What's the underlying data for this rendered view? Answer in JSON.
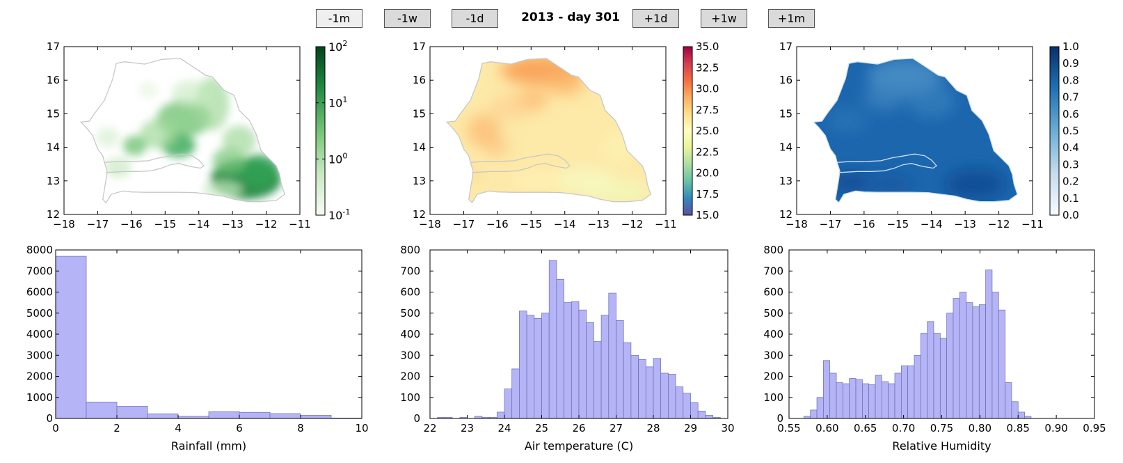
{
  "nav": {
    "buttons": [
      {
        "label": "-1m",
        "shade": "light"
      },
      {
        "label": "-1w",
        "shade": "dark"
      },
      {
        "label": "-1d",
        "shade": "dark"
      },
      {
        "label": "+1d",
        "shade": "dark"
      },
      {
        "label": "+1w",
        "shade": "dark"
      },
      {
        "label": "+1m",
        "shade": "dark"
      }
    ],
    "title": "2013 - day 301"
  },
  "chart_data": [
    {
      "type": "heatmap",
      "variable": "rainfall",
      "xticks": [
        "−18",
        "−17",
        "−16",
        "−15",
        "−14",
        "−13",
        "−12",
        "−11"
      ],
      "yticks": [
        "12",
        "13",
        "14",
        "15",
        "16",
        "17"
      ],
      "xlim": [
        -18,
        -11
      ],
      "ylim": [
        12,
        17
      ],
      "colorbar": {
        "scale": "log",
        "ticks_base": "10",
        "ticks_exp": [
          "-1",
          "0",
          "1",
          "2"
        ],
        "range": [
          0.1,
          100
        ],
        "colors": [
          "#f7fcf5",
          "#c7e9c0",
          "#74c476",
          "#238b45",
          "#00441b"
        ]
      }
    },
    {
      "type": "heatmap",
      "variable": "air_temperature",
      "xticks": [
        "−18",
        "−17",
        "−16",
        "−15",
        "−14",
        "−13",
        "−12",
        "−11"
      ],
      "yticks": [
        "12",
        "13",
        "14",
        "15",
        "16",
        "17"
      ],
      "xlim": [
        -18,
        -11
      ],
      "ylim": [
        12,
        17
      ],
      "colorbar": {
        "scale": "linear",
        "ticks": [
          "15.0",
          "17.5",
          "20.0",
          "22.5",
          "25.0",
          "27.5",
          "30.0",
          "32.5",
          "35.0"
        ],
        "range": [
          15,
          35
        ],
        "colors": [
          "#5e4fa2",
          "#3288bd",
          "#66c2a5",
          "#abdda4",
          "#e6f598",
          "#ffffbf",
          "#fee08b",
          "#fdae61",
          "#f46d43",
          "#d53e4f",
          "#9e0142"
        ]
      }
    },
    {
      "type": "heatmap",
      "variable": "relative_humidity",
      "xticks": [
        "−18",
        "−17",
        "−16",
        "−15",
        "−14",
        "−13",
        "−12",
        "−11"
      ],
      "yticks": [
        "12",
        "13",
        "14",
        "15",
        "16",
        "17"
      ],
      "xlim": [
        -18,
        -11
      ],
      "ylim": [
        12,
        17
      ],
      "colorbar": {
        "scale": "linear",
        "ticks": [
          "0.0",
          "0.1",
          "0.2",
          "0.3",
          "0.4",
          "0.5",
          "0.6",
          "0.7",
          "0.8",
          "0.9",
          "1.0"
        ],
        "range": [
          0,
          1
        ],
        "colors": [
          "#f7fbff",
          "#c6dbef",
          "#6baed6",
          "#2171b5",
          "#08306b"
        ]
      }
    },
    {
      "type": "bar",
      "xlabel": "Rainfall (mm)",
      "xlim": [
        0,
        10
      ],
      "ylim": [
        0,
        8000
      ],
      "bin_width": 1,
      "bin_starts": [
        0,
        1,
        2,
        3,
        4,
        5,
        6,
        7,
        8,
        9
      ],
      "values": [
        7700,
        780,
        580,
        220,
        100,
        320,
        290,
        230,
        150,
        20
      ],
      "xticks": [
        "0",
        "2",
        "4",
        "6",
        "8",
        "10"
      ],
      "yticks": [
        "0",
        "1000",
        "2000",
        "3000",
        "4000",
        "5000",
        "6000",
        "7000",
        "8000"
      ],
      "color": "#b0b0f5"
    },
    {
      "type": "bar",
      "xlabel": "Air temperature (C)",
      "xlim": [
        22,
        30
      ],
      "ylim": [
        0,
        800
      ],
      "bin_width": 0.2,
      "bin_starts": [
        22.2,
        22.4,
        22.6,
        22.8,
        23.0,
        23.2,
        23.4,
        23.6,
        23.8,
        24.0,
        24.2,
        24.4,
        24.6,
        24.8,
        25.0,
        25.2,
        25.4,
        25.6,
        25.8,
        26.0,
        26.2,
        26.4,
        26.6,
        26.8,
        27.0,
        27.2,
        27.4,
        27.6,
        27.8,
        28.0,
        28.2,
        28.4,
        28.6,
        28.8,
        29.0,
        29.2,
        29.4,
        29.6,
        29.8
      ],
      "values": [
        5,
        5,
        0,
        5,
        0,
        10,
        5,
        5,
        30,
        140,
        235,
        510,
        490,
        475,
        500,
        750,
        660,
        550,
        555,
        515,
        455,
        365,
        490,
        595,
        465,
        360,
        300,
        280,
        245,
        285,
        215,
        210,
        150,
        120,
        75,
        35,
        15,
        5,
        0
      ],
      "xticks": [
        "22",
        "23",
        "24",
        "25",
        "26",
        "27",
        "28",
        "29",
        "30"
      ],
      "yticks": [
        "0",
        "100",
        "200",
        "300",
        "400",
        "500",
        "600",
        "700",
        "800"
      ],
      "color": "#b0b0f5"
    },
    {
      "type": "bar",
      "xlabel": "Relative Humidity",
      "xlim": [
        0.55,
        0.95
      ],
      "ylim": [
        0,
        800
      ],
      "bin_width": 0.0085,
      "bin_starts": [
        0.5695,
        0.578,
        0.5865,
        0.595,
        0.6035,
        0.612,
        0.6205,
        0.629,
        0.6375,
        0.646,
        0.6545,
        0.663,
        0.6715,
        0.68,
        0.6885,
        0.697,
        0.7055,
        0.714,
        0.7225,
        0.731,
        0.7395,
        0.748,
        0.7565,
        0.765,
        0.7735,
        0.782,
        0.7905,
        0.799,
        0.8075,
        0.816,
        0.8245,
        0.833,
        0.8415,
        0.85,
        0.8585,
        0.867,
        0.8755,
        0.884,
        0.8925,
        0.901,
        0.9095,
        0.918
      ],
      "values": [
        10,
        40,
        100,
        275,
        215,
        170,
        165,
        190,
        185,
        165,
        160,
        205,
        175,
        165,
        215,
        250,
        250,
        300,
        405,
        460,
        405,
        380,
        500,
        570,
        600,
        550,
        530,
        540,
        705,
        600,
        515,
        170,
        80,
        30,
        10,
        0,
        0,
        0,
        0,
        0,
        0,
        0
      ],
      "xticks": [
        "0.55",
        "0.60",
        "0.65",
        "0.70",
        "0.75",
        "0.80",
        "0.85",
        "0.90",
        "0.95"
      ],
      "yticks": [
        "0",
        "100",
        "200",
        "300",
        "400",
        "500",
        "600",
        "700",
        "800"
      ],
      "color": "#b0b0f5"
    }
  ]
}
